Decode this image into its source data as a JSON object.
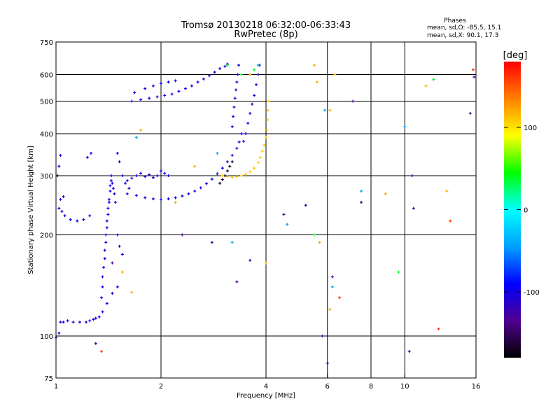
{
  "chart_data": {
    "type": "scatter",
    "title": "Tromsø 20130218 06:32:00-06:33:43",
    "subtitle": "RwPretec (8p)",
    "phases": {
      "heading": "Phases",
      "line_o": "mean, sd,O: -85.5, 15.1",
      "line_x": "mean, sd,X:  90.1, 17.3"
    },
    "xlabel": "Frequency [MHz]",
    "ylabel": "Stationary phase Virtual Height [km]",
    "x_scale": "log",
    "y_scale": "log",
    "xlim": [
      1,
      16
    ],
    "ylim": [
      75,
      750
    ],
    "x_ticks": [
      1,
      2,
      4,
      6,
      8,
      10,
      16
    ],
    "x_tick_labels": [
      "1",
      "2",
      "4",
      "6",
      "8",
      "10",
      "16"
    ],
    "x_grid": [
      2,
      4,
      6,
      8,
      10
    ],
    "y_ticks": [
      75,
      100,
      200,
      300,
      400,
      500,
      600,
      750
    ],
    "y_tick_labels": [
      "75",
      "100",
      "200",
      "300",
      "400",
      "500",
      "600",
      "750"
    ],
    "y_grid": [
      100,
      200,
      300,
      400,
      500,
      600
    ],
    "grid": true,
    "colorbar": {
      "label": "[deg]",
      "min": -180,
      "max": 180,
      "ticks": [
        100,
        0,
        -100
      ],
      "tick_labels": [
        "100",
        "0",
        "-100"
      ],
      "colors": [
        "#000000",
        "#500090",
        "#0000ff",
        "#00a0ff",
        "#00ffff",
        "#00ff00",
        "#ffff00",
        "#ff8000",
        "#ff0000"
      ]
    },
    "series": [
      {
        "phase": -100,
        "points": [
          [
            1.0,
            99
          ],
          [
            1.02,
            102
          ],
          [
            1.03,
            110
          ],
          [
            1.05,
            110
          ],
          [
            1.08,
            111
          ],
          [
            1.12,
            110
          ],
          [
            1.17,
            110
          ],
          [
            1.22,
            110
          ],
          [
            1.28,
            112
          ],
          [
            1.33,
            114
          ],
          [
            1.36,
            118
          ],
          [
            1.4,
            125
          ],
          [
            1.45,
            134
          ],
          [
            1.5,
            140
          ],
          [
            1.3,
            113
          ],
          [
            1.25,
            111
          ]
        ]
      },
      {
        "phase": -100,
        "points": [
          [
            1.38,
            170
          ],
          [
            1.38,
            180
          ],
          [
            1.39,
            190
          ],
          [
            1.39,
            200
          ],
          [
            1.4,
            210
          ],
          [
            1.4,
            220
          ],
          [
            1.41,
            230
          ],
          [
            1.41,
            240
          ],
          [
            1.42,
            250
          ],
          [
            1.42,
            255
          ],
          [
            1.43,
            270
          ],
          [
            1.43,
            280
          ],
          [
            1.44,
            290
          ],
          [
            1.44,
            300
          ],
          [
            1.45,
            285
          ],
          [
            1.46,
            275
          ],
          [
            1.47,
            265
          ],
          [
            1.48,
            250
          ],
          [
            1.5,
            200
          ],
          [
            1.52,
            185
          ],
          [
            1.55,
            175
          ],
          [
            1.37,
            160
          ],
          [
            1.36,
            150
          ],
          [
            1.36,
            140
          ],
          [
            1.35,
            130
          ]
        ]
      },
      {
        "phase": -100,
        "points": [
          [
            1.02,
            240
          ],
          [
            1.04,
            235
          ],
          [
            1.06,
            228
          ],
          [
            1.1,
            222
          ],
          [
            1.15,
            220
          ],
          [
            1.2,
            222
          ],
          [
            1.25,
            228
          ],
          [
            1.03,
            255
          ],
          [
            1.05,
            260
          ],
          [
            1.01,
            300
          ],
          [
            1.02,
            320
          ],
          [
            1.03,
            345
          ],
          [
            1.23,
            340
          ],
          [
            1.26,
            350
          ],
          [
            1.5,
            350
          ],
          [
            1.52,
            330
          ],
          [
            1.55,
            300
          ],
          [
            1.58,
            285
          ],
          [
            1.62,
            275
          ]
        ]
      },
      {
        "phase": -100,
        "points": [
          [
            1.6,
            265
          ],
          [
            1.7,
            262
          ],
          [
            1.8,
            258
          ],
          [
            1.9,
            256
          ],
          [
            2.0,
            255
          ],
          [
            2.1,
            256
          ],
          [
            2.2,
            258
          ],
          [
            2.3,
            261
          ],
          [
            2.4,
            265
          ],
          [
            2.5,
            270
          ],
          [
            2.6,
            276
          ],
          [
            2.7,
            284
          ],
          [
            2.8,
            293
          ],
          [
            2.9,
            304
          ],
          [
            3.0,
            316
          ],
          [
            3.1,
            330
          ],
          [
            3.2,
            345
          ],
          [
            3.3,
            362
          ],
          [
            3.35,
            378
          ],
          [
            3.4,
            400
          ]
        ]
      },
      {
        "phase": -100,
        "points": [
          [
            1.7,
            300
          ],
          [
            1.75,
            305
          ],
          [
            1.8,
            298
          ],
          [
            1.85,
            302
          ],
          [
            1.9,
            296
          ],
          [
            1.95,
            300
          ],
          [
            2.0,
            310
          ],
          [
            2.05,
            305
          ],
          [
            2.1,
            300
          ],
          [
            1.65,
            295
          ],
          [
            1.6,
            290
          ]
        ]
      },
      {
        "phase": -100,
        "points": [
          [
            1.65,
            500
          ],
          [
            1.75,
            505
          ],
          [
            1.85,
            510
          ],
          [
            1.95,
            515
          ],
          [
            2.05,
            520
          ],
          [
            2.15,
            525
          ],
          [
            2.25,
            535
          ],
          [
            2.35,
            545
          ],
          [
            2.45,
            555
          ],
          [
            2.55,
            570
          ],
          [
            2.65,
            582
          ],
          [
            2.75,
            595
          ],
          [
            2.85,
            610
          ],
          [
            2.95,
            625
          ],
          [
            3.05,
            635
          ],
          [
            3.1,
            645
          ],
          [
            1.68,
            530
          ],
          [
            1.8,
            545
          ],
          [
            1.9,
            555
          ],
          [
            2.0,
            565
          ],
          [
            2.1,
            570
          ],
          [
            2.2,
            575
          ]
        ]
      },
      {
        "phase": -110,
        "points": [
          [
            3.2,
            420
          ],
          [
            3.22,
            450
          ],
          [
            3.24,
            480
          ],
          [
            3.26,
            510
          ],
          [
            3.28,
            540
          ],
          [
            3.3,
            570
          ],
          [
            3.32,
            600
          ],
          [
            3.34,
            640
          ],
          [
            3.45,
            380
          ],
          [
            3.5,
            400
          ],
          [
            3.55,
            430
          ],
          [
            3.6,
            460
          ],
          [
            3.65,
            490
          ],
          [
            3.7,
            520
          ],
          [
            3.75,
            560
          ],
          [
            3.8,
            600
          ],
          [
            3.83,
            640
          ]
        ]
      },
      {
        "phase": -170,
        "points": [
          [
            2.95,
            285
          ],
          [
            3.0,
            292
          ],
          [
            3.05,
            300
          ],
          [
            3.1,
            310
          ],
          [
            3.15,
            320
          ],
          [
            3.2,
            330
          ]
        ]
      },
      {
        "phase": 110,
        "points": [
          [
            3.0,
            300
          ],
          [
            3.1,
            298
          ],
          [
            3.2,
            297
          ],
          [
            3.3,
            298
          ],
          [
            3.4,
            300
          ],
          [
            3.5,
            303
          ],
          [
            3.6,
            308
          ],
          [
            3.7,
            316
          ],
          [
            3.8,
            328
          ],
          [
            3.85,
            340
          ],
          [
            3.9,
            355
          ],
          [
            3.95,
            370
          ],
          [
            4.0,
            390
          ],
          [
            4.02,
            410
          ],
          [
            4.04,
            440
          ],
          [
            4.05,
            470
          ],
          [
            4.06,
            500
          ]
        ]
      },
      {
        "phase": -130,
        "points": [
          [
            1.45,
            165
          ],
          [
            1.3,
            95
          ],
          [
            2.3,
            200
          ],
          [
            2.8,
            190
          ],
          [
            3.3,
            145
          ],
          [
            3.6,
            168
          ],
          [
            4.5,
            230
          ],
          [
            5.2,
            245
          ],
          [
            5.8,
            100
          ],
          [
            6.0,
            83
          ],
          [
            6.2,
            150
          ],
          [
            7.1,
            500
          ],
          [
            7.5,
            250
          ],
          [
            10.5,
            300
          ],
          [
            10.6,
            240
          ],
          [
            10.3,
            90
          ],
          [
            15.4,
            460
          ],
          [
            15.8,
            590
          ]
        ]
      },
      {
        "phase": 120,
        "points": [
          [
            1.55,
            155
          ],
          [
            1.65,
            135
          ],
          [
            1.75,
            410
          ],
          [
            2.2,
            250
          ],
          [
            2.5,
            320
          ],
          [
            3.6,
            600
          ],
          [
            4.0,
            165
          ],
          [
            5.5,
            640
          ],
          [
            5.6,
            570
          ],
          [
            5.7,
            190
          ],
          [
            6.1,
            120
          ],
          [
            6.3,
            600
          ],
          [
            6.1,
            470
          ],
          [
            8.8,
            265
          ],
          [
            11.5,
            555
          ],
          [
            13.2,
            270
          ]
        ]
      },
      {
        "phase": -40,
        "points": [
          [
            1.7,
            390
          ],
          [
            2.9,
            350
          ],
          [
            3.2,
            190
          ],
          [
            3.8,
            640
          ],
          [
            4.6,
            215
          ],
          [
            5.9,
            470
          ],
          [
            6.2,
            140
          ],
          [
            7.5,
            270
          ],
          [
            10.0,
            420
          ]
        ]
      },
      {
        "phase": 40,
        "points": [
          [
            3.1,
            640
          ],
          [
            3.4,
            600
          ],
          [
            3.7,
            620
          ],
          [
            5.5,
            200
          ],
          [
            9.6,
            155
          ],
          [
            12.1,
            580
          ]
        ]
      },
      {
        "phase": 160,
        "points": [
          [
            1.35,
            90
          ],
          [
            6.5,
            130
          ],
          [
            12.5,
            105
          ],
          [
            13.5,
            220
          ],
          [
            15.7,
            620
          ]
        ]
      }
    ]
  }
}
